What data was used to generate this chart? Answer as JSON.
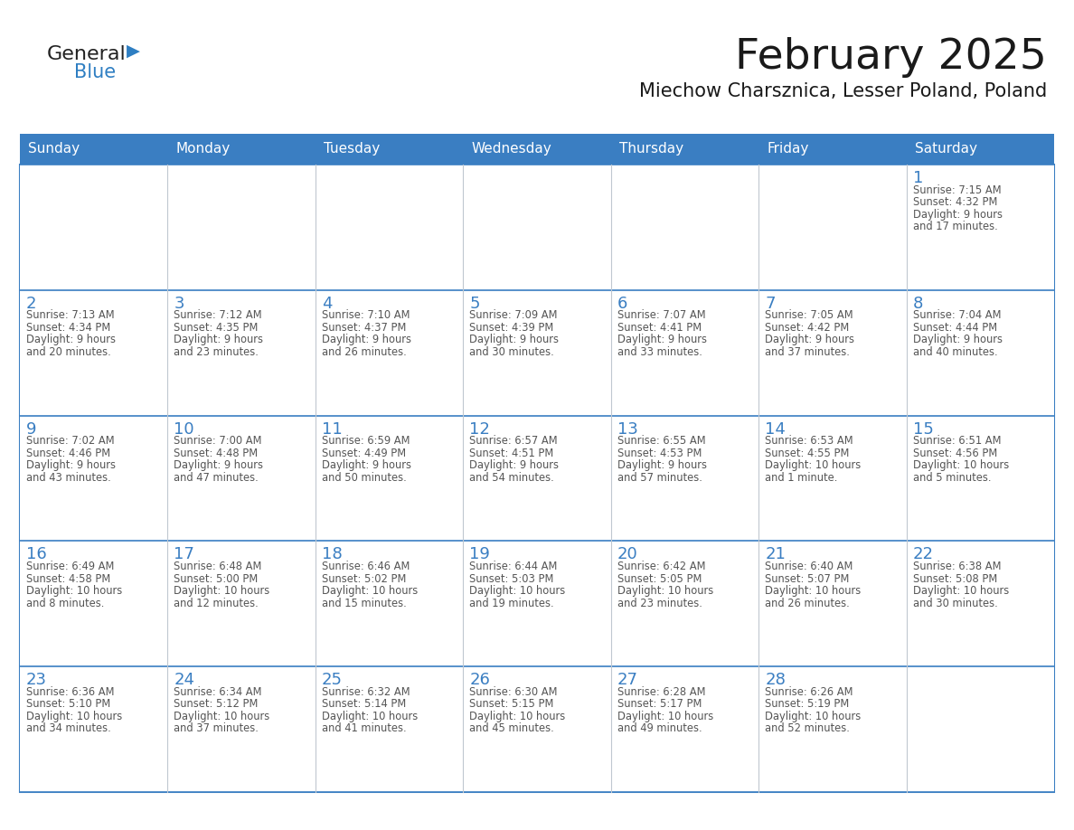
{
  "title": "February 2025",
  "subtitle": "Miechow Charsznica, Lesser Poland, Poland",
  "header_color": "#3a7ec2",
  "header_text_color": "#ffffff",
  "border_color": "#3a7ec2",
  "text_color": "#555555",
  "day_number_color": "#3a7ec2",
  "days_of_week": [
    "Sunday",
    "Monday",
    "Tuesday",
    "Wednesday",
    "Thursday",
    "Friday",
    "Saturday"
  ],
  "calendar_data": [
    [
      null,
      null,
      null,
      null,
      null,
      null,
      {
        "day": "1",
        "lines": [
          "Sunrise: 7:15 AM",
          "Sunset: 4:32 PM",
          "Daylight: 9 hours",
          "and 17 minutes."
        ]
      }
    ],
    [
      {
        "day": "2",
        "lines": [
          "Sunrise: 7:13 AM",
          "Sunset: 4:34 PM",
          "Daylight: 9 hours",
          "and 20 minutes."
        ]
      },
      {
        "day": "3",
        "lines": [
          "Sunrise: 7:12 AM",
          "Sunset: 4:35 PM",
          "Daylight: 9 hours",
          "and 23 minutes."
        ]
      },
      {
        "day": "4",
        "lines": [
          "Sunrise: 7:10 AM",
          "Sunset: 4:37 PM",
          "Daylight: 9 hours",
          "and 26 minutes."
        ]
      },
      {
        "day": "5",
        "lines": [
          "Sunrise: 7:09 AM",
          "Sunset: 4:39 PM",
          "Daylight: 9 hours",
          "and 30 minutes."
        ]
      },
      {
        "day": "6",
        "lines": [
          "Sunrise: 7:07 AM",
          "Sunset: 4:41 PM",
          "Daylight: 9 hours",
          "and 33 minutes."
        ]
      },
      {
        "day": "7",
        "lines": [
          "Sunrise: 7:05 AM",
          "Sunset: 4:42 PM",
          "Daylight: 9 hours",
          "and 37 minutes."
        ]
      },
      {
        "day": "8",
        "lines": [
          "Sunrise: 7:04 AM",
          "Sunset: 4:44 PM",
          "Daylight: 9 hours",
          "and 40 minutes."
        ]
      }
    ],
    [
      {
        "day": "9",
        "lines": [
          "Sunrise: 7:02 AM",
          "Sunset: 4:46 PM",
          "Daylight: 9 hours",
          "and 43 minutes."
        ]
      },
      {
        "day": "10",
        "lines": [
          "Sunrise: 7:00 AM",
          "Sunset: 4:48 PM",
          "Daylight: 9 hours",
          "and 47 minutes."
        ]
      },
      {
        "day": "11",
        "lines": [
          "Sunrise: 6:59 AM",
          "Sunset: 4:49 PM",
          "Daylight: 9 hours",
          "and 50 minutes."
        ]
      },
      {
        "day": "12",
        "lines": [
          "Sunrise: 6:57 AM",
          "Sunset: 4:51 PM",
          "Daylight: 9 hours",
          "and 54 minutes."
        ]
      },
      {
        "day": "13",
        "lines": [
          "Sunrise: 6:55 AM",
          "Sunset: 4:53 PM",
          "Daylight: 9 hours",
          "and 57 minutes."
        ]
      },
      {
        "day": "14",
        "lines": [
          "Sunrise: 6:53 AM",
          "Sunset: 4:55 PM",
          "Daylight: 10 hours",
          "and 1 minute."
        ]
      },
      {
        "day": "15",
        "lines": [
          "Sunrise: 6:51 AM",
          "Sunset: 4:56 PM",
          "Daylight: 10 hours",
          "and 5 minutes."
        ]
      }
    ],
    [
      {
        "day": "16",
        "lines": [
          "Sunrise: 6:49 AM",
          "Sunset: 4:58 PM",
          "Daylight: 10 hours",
          "and 8 minutes."
        ]
      },
      {
        "day": "17",
        "lines": [
          "Sunrise: 6:48 AM",
          "Sunset: 5:00 PM",
          "Daylight: 10 hours",
          "and 12 minutes."
        ]
      },
      {
        "day": "18",
        "lines": [
          "Sunrise: 6:46 AM",
          "Sunset: 5:02 PM",
          "Daylight: 10 hours",
          "and 15 minutes."
        ]
      },
      {
        "day": "19",
        "lines": [
          "Sunrise: 6:44 AM",
          "Sunset: 5:03 PM",
          "Daylight: 10 hours",
          "and 19 minutes."
        ]
      },
      {
        "day": "20",
        "lines": [
          "Sunrise: 6:42 AM",
          "Sunset: 5:05 PM",
          "Daylight: 10 hours",
          "and 23 minutes."
        ]
      },
      {
        "day": "21",
        "lines": [
          "Sunrise: 6:40 AM",
          "Sunset: 5:07 PM",
          "Daylight: 10 hours",
          "and 26 minutes."
        ]
      },
      {
        "day": "22",
        "lines": [
          "Sunrise: 6:38 AM",
          "Sunset: 5:08 PM",
          "Daylight: 10 hours",
          "and 30 minutes."
        ]
      }
    ],
    [
      {
        "day": "23",
        "lines": [
          "Sunrise: 6:36 AM",
          "Sunset: 5:10 PM",
          "Daylight: 10 hours",
          "and 34 minutes."
        ]
      },
      {
        "day": "24",
        "lines": [
          "Sunrise: 6:34 AM",
          "Sunset: 5:12 PM",
          "Daylight: 10 hours",
          "and 37 minutes."
        ]
      },
      {
        "day": "25",
        "lines": [
          "Sunrise: 6:32 AM",
          "Sunset: 5:14 PM",
          "Daylight: 10 hours",
          "and 41 minutes."
        ]
      },
      {
        "day": "26",
        "lines": [
          "Sunrise: 6:30 AM",
          "Sunset: 5:15 PM",
          "Daylight: 10 hours",
          "and 45 minutes."
        ]
      },
      {
        "day": "27",
        "lines": [
          "Sunrise: 6:28 AM",
          "Sunset: 5:17 PM",
          "Daylight: 10 hours",
          "and 49 minutes."
        ]
      },
      {
        "day": "28",
        "lines": [
          "Sunrise: 6:26 AM",
          "Sunset: 5:19 PM",
          "Daylight: 10 hours",
          "and 52 minutes."
        ]
      },
      null
    ]
  ]
}
